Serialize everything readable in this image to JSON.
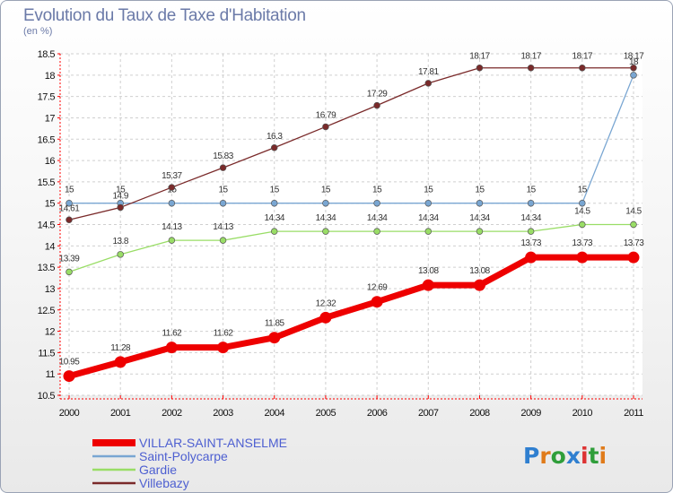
{
  "title": "Evolution du Taux de Taxe d'Habitation",
  "unit": "(en %)",
  "logo": "Proxiti",
  "chart_data": {
    "type": "line",
    "title": "Evolution du Taux de Taxe d'Habitation",
    "ylabel": "(en %)",
    "xlabel": "",
    "x": [
      2000,
      2001,
      2002,
      2003,
      2004,
      2005,
      2006,
      2007,
      2008,
      2009,
      2010,
      2011
    ],
    "ylim": [
      10.5,
      18.5
    ],
    "yticks": [
      10.5,
      11,
      11.5,
      12,
      12.5,
      13,
      13.5,
      14,
      14.5,
      15,
      15.5,
      16,
      16.5,
      17,
      17.5,
      18,
      18.5
    ],
    "grid": true,
    "legend": "bottom-left",
    "series": [
      {
        "name": "VILLAR-SAINT-ANSELME",
        "color": "#ee0000",
        "labels": [
          "10.95",
          "11.28",
          "11.62",
          "11.62",
          "11.85",
          "12.32",
          "12.69",
          "13.08",
          "13.08",
          "13.73",
          "13.73",
          "13.73"
        ],
        "values": [
          10.95,
          11.28,
          11.62,
          11.62,
          11.85,
          12.32,
          12.69,
          13.08,
          13.08,
          13.73,
          13.73,
          13.73
        ]
      },
      {
        "name": "Saint-Polycarpe",
        "color": "#79a6d2",
        "labels": [
          "15",
          "15",
          "15",
          "15",
          "15",
          "15",
          "15",
          "15",
          "15",
          "15",
          "15",
          "18"
        ],
        "values": [
          15,
          15,
          15,
          15,
          15,
          15,
          15,
          15,
          15,
          15,
          15,
          18
        ]
      },
      {
        "name": "Gardie",
        "color": "#99dd66",
        "labels": [
          "13.39",
          "13.8",
          "14.13",
          "14.13",
          "14.34",
          "14.34",
          "14.34",
          "14.34",
          "14.34",
          "14.34",
          "14.5",
          "14.5"
        ],
        "values": [
          13.39,
          13.8,
          14.13,
          14.13,
          14.34,
          14.34,
          14.34,
          14.34,
          14.34,
          14.34,
          14.5,
          14.5
        ]
      },
      {
        "name": "Villebazy",
        "color": "#7a2a2a",
        "labels": [
          "14.61",
          "14.9",
          "15.37",
          "15.83",
          "16.3",
          "16.79",
          "17.29",
          "17.81",
          "18.17",
          "18.17",
          "18.17",
          "18.17"
        ],
        "values": [
          14.61,
          14.9,
          15.37,
          15.83,
          16.3,
          16.79,
          17.29,
          17.81,
          18.17,
          18.17,
          18.17,
          18.17
        ]
      }
    ]
  }
}
